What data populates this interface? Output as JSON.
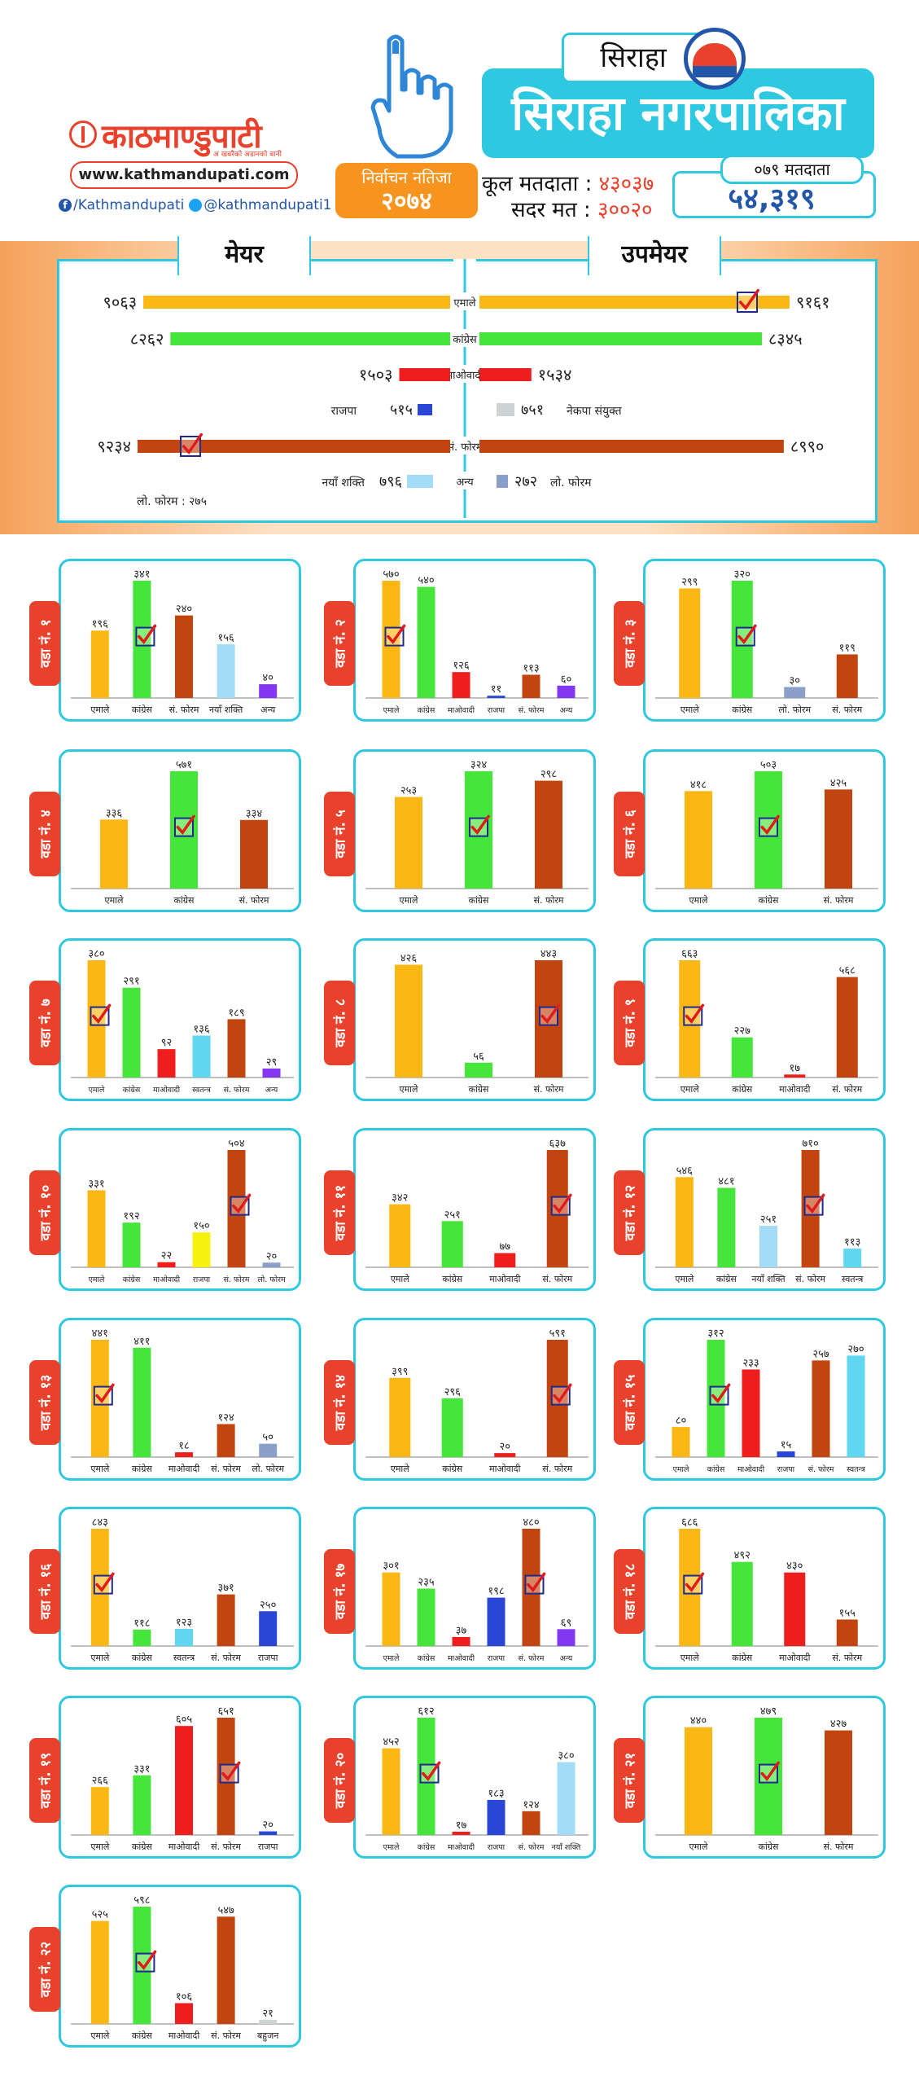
{
  "header": {
    "logo_text": "काठमाण्डुपाटी",
    "logo_tagline": "अ खबरैको अडानको बानी",
    "url": "www.kathmandupati.com",
    "facebook": "/Kathmandupati",
    "twitter": "@kathmandupati1",
    "election_label": "निर्वाचन नतिजा",
    "election_year": "२०७४",
    "district": "सिराहा",
    "municipality": "सिराहा नगरपालिका",
    "total_voters_label": "कूल मतदाता",
    "total_voters": "४३०३७",
    "valid_votes_label": "सदर मत",
    "valid_votes": "३००२०",
    "vote_2079_label": "०७९ मतदाता",
    "vote_2079": "५४,३१९"
  },
  "colors": {
    "yellow": "#fbb713",
    "green": "#45e53b",
    "red": "#ef1e1e",
    "blue": "#2946d6",
    "grey": "#cdd2d2",
    "brown": "#c2440f",
    "skyblue": "#a3dcf6",
    "purple": "#8237f0",
    "steel": "#8aa0c8",
    "teal": "#60d7f0",
    "yellow2": "#f7f10f",
    "frame": "#2ec8e0",
    "tab": "#e8412c"
  },
  "chart_data": [
    {
      "type": "bar",
      "title": "मेयर",
      "series_name": "mayor",
      "categories": [
        "एमाले",
        "कांग्रेस",
        "माओवादी",
        "राजपा",
        "सं. फोरम",
        "नयाँ शक्ति",
        "लो. फोरम"
      ],
      "value_labels": [
        "९०६३",
        "८२६२",
        "१५०३",
        "५१५",
        "९२३४",
        "७९६",
        "२७५"
      ],
      "values": [
        9063,
        8262,
        1503,
        515,
        9234,
        796,
        275
      ],
      "colors": [
        "yellow",
        "green",
        "red",
        "blue",
        "brown",
        "skyblue",
        ""
      ],
      "winner": "सं. फोरम"
    },
    {
      "type": "bar",
      "title": "उपमेयर",
      "series_name": "deputy",
      "categories": [
        "एमाले",
        "कांग्रेस",
        "माओवादी",
        "नेकपा संयुक्त",
        "सं. फोरम",
        "अन्य",
        "लो. फोरम"
      ],
      "value_labels": [
        "९१६१",
        "८३४५",
        "१५३४",
        "७५१",
        "८९९०",
        "",
        "२७२"
      ],
      "values": [
        9161,
        8345,
        1534,
        751,
        8990,
        null,
        272
      ],
      "colors": [
        "yellow",
        "green",
        "red",
        "grey",
        "brown",
        "skyblue",
        "steel"
      ],
      "winner": "एमाले"
    }
  ],
  "wards": [
    {
      "label": "वडा नं. १",
      "bars": [
        {
          "name": "एमाले",
          "value": 196,
          "label": "१९६",
          "color": "yellow"
        },
        {
          "name": "कांग्रेस",
          "value": 341,
          "label": "३४१",
          "color": "green",
          "winner": true
        },
        {
          "name": "सं. फोरम",
          "value": 240,
          "label": "२४०",
          "color": "brown"
        },
        {
          "name": "नयाँ शक्ति",
          "value": 156,
          "label": "१५६",
          "color": "skyblue"
        },
        {
          "name": "अन्य",
          "value": 40,
          "label": "४०",
          "color": "purple"
        }
      ]
    },
    {
      "label": "वडा नं. २",
      "bars": [
        {
          "name": "एमाले",
          "value": 570,
          "label": "५७०",
          "color": "yellow",
          "winner": true
        },
        {
          "name": "कांग्रेस",
          "value": 540,
          "label": "५४०",
          "color": "green"
        },
        {
          "name": "माओवादी",
          "value": 126,
          "label": "१२६",
          "color": "red"
        },
        {
          "name": "राजपा",
          "value": 11,
          "label": "११",
          "color": "blue"
        },
        {
          "name": "सं. फोरम",
          "value": 113,
          "label": "११३",
          "color": "brown"
        },
        {
          "name": "अन्य",
          "value": 60,
          "label": "६०",
          "color": "purple"
        }
      ]
    },
    {
      "label": "वडा नं. ३",
      "bars": [
        {
          "name": "एमाले",
          "value": 299,
          "label": "२९९",
          "color": "yellow"
        },
        {
          "name": "कांग्रेस",
          "value": 320,
          "label": "३२०",
          "color": "green",
          "winner": true
        },
        {
          "name": "लो. फोरम",
          "value": 30,
          "label": "३०",
          "color": "steel"
        },
        {
          "name": "सं. फोरम",
          "value": 119,
          "label": "११९",
          "color": "brown"
        }
      ]
    },
    {
      "label": "वडा नं. ४",
      "bars": [
        {
          "name": "एमाले",
          "value": 336,
          "label": "३३६",
          "color": "yellow"
        },
        {
          "name": "कांग्रेस",
          "value": 571,
          "label": "५७१",
          "color": "green",
          "winner": true
        },
        {
          "name": "सं. फोरम",
          "value": 334,
          "label": "३३४",
          "color": "brown"
        }
      ]
    },
    {
      "label": "वडा नं. ५",
      "bars": [
        {
          "name": "एमाले",
          "value": 253,
          "label": "२५३",
          "color": "yellow"
        },
        {
          "name": "कांग्रेस",
          "value": 324,
          "label": "३२४",
          "color": "green",
          "winner": true
        },
        {
          "name": "सं. फोरम",
          "value": 298,
          "label": "२९८",
          "color": "brown"
        }
      ]
    },
    {
      "label": "वडा नं. ६",
      "bars": [
        {
          "name": "एमाले",
          "value": 418,
          "label": "४१८",
          "color": "yellow"
        },
        {
          "name": "कांग्रेस",
          "value": 503,
          "label": "५०३",
          "color": "green",
          "winner": true
        },
        {
          "name": "सं. फोरम",
          "value": 425,
          "label": "४२५",
          "color": "brown"
        }
      ]
    },
    {
      "label": "वडा नं. ७",
      "bars": [
        {
          "name": "एमाले",
          "value": 380,
          "label": "३८०",
          "color": "yellow",
          "winner": true
        },
        {
          "name": "कांग्रेस",
          "value": 291,
          "label": "२९१",
          "color": "green"
        },
        {
          "name": "माओवादी",
          "value": 92,
          "label": "९२",
          "color": "red"
        },
        {
          "name": "स्वतन्त्र",
          "value": 136,
          "label": "१३६",
          "color": "teal"
        },
        {
          "name": "सं. फोरम",
          "value": 189,
          "label": "१८९",
          "color": "brown"
        },
        {
          "name": "अन्य",
          "value": 29,
          "label": "२९",
          "color": "purple"
        }
      ]
    },
    {
      "label": "वडा नं. ८",
      "bars": [
        {
          "name": "एमाले",
          "value": 426,
          "label": "४२६",
          "color": "yellow"
        },
        {
          "name": "कांग्रेस",
          "value": 56,
          "label": "५६",
          "color": "green"
        },
        {
          "name": "सं. फोरम",
          "value": 443,
          "label": "४४३",
          "color": "brown",
          "winner": true
        }
      ]
    },
    {
      "label": "वडा नं. ९",
      "bars": [
        {
          "name": "एमाले",
          "value": 663,
          "label": "६६३",
          "color": "yellow",
          "winner": true
        },
        {
          "name": "कांग्रेस",
          "value": 227,
          "label": "२२७",
          "color": "green"
        },
        {
          "name": "माओवादी",
          "value": 17,
          "label": "१७",
          "color": "red"
        },
        {
          "name": "सं. फोरम",
          "value": 568,
          "label": "५६८",
          "color": "brown"
        }
      ]
    },
    {
      "label": "वडा नं. १०",
      "bars": [
        {
          "name": "एमाले",
          "value": 331,
          "label": "३३१",
          "color": "yellow"
        },
        {
          "name": "कांग्रेस",
          "value": 192,
          "label": "१९२",
          "color": "green"
        },
        {
          "name": "माओवादी",
          "value": 22,
          "label": "२२",
          "color": "red"
        },
        {
          "name": "राजपा",
          "value": 150,
          "label": "१५०",
          "color": "yellow2"
        },
        {
          "name": "सं. फोरम",
          "value": 504,
          "label": "५०४",
          "color": "brown",
          "winner": true
        },
        {
          "name": "लो. फोरम",
          "value": 20,
          "label": "२०",
          "color": "steel"
        }
      ]
    },
    {
      "label": "वडा नं. ११",
      "bars": [
        {
          "name": "एमाले",
          "value": 342,
          "label": "३४२",
          "color": "yellow"
        },
        {
          "name": "कांग्रेस",
          "value": 251,
          "label": "२५१",
          "color": "green"
        },
        {
          "name": "माओवादी",
          "value": 77,
          "label": "७७",
          "color": "red"
        },
        {
          "name": "सं. फोरम",
          "value": 637,
          "label": "६३७",
          "color": "brown",
          "winner": true
        }
      ]
    },
    {
      "label": "वडा नं. १२",
      "bars": [
        {
          "name": "एमाले",
          "value": 546,
          "label": "५४६",
          "color": "yellow"
        },
        {
          "name": "कांग्रेस",
          "value": 481,
          "label": "४८१",
          "color": "green"
        },
        {
          "name": "नयाँ शक्ति",
          "value": 251,
          "label": "२५१",
          "color": "skyblue"
        },
        {
          "name": "सं. फोरम",
          "value": 710,
          "label": "७१०",
          "color": "brown",
          "winner": true
        },
        {
          "name": "स्वतन्त्र",
          "value": 113,
          "label": "११३",
          "color": "teal"
        }
      ]
    },
    {
      "label": "वडा नं. १३",
      "bars": [
        {
          "name": "एमाले",
          "value": 441,
          "label": "४४१",
          "color": "yellow",
          "winner": true
        },
        {
          "name": "कांग्रेस",
          "value": 411,
          "label": "४११",
          "color": "green"
        },
        {
          "name": "माओवादी",
          "value": 18,
          "label": "१८",
          "color": "red"
        },
        {
          "name": "सं. फोरम",
          "value": 124,
          "label": "१२४",
          "color": "brown"
        },
        {
          "name": "लो. फोरम",
          "value": 50,
          "label": "५०",
          "color": "steel"
        }
      ]
    },
    {
      "label": "वडा नं. १४",
      "bars": [
        {
          "name": "एमाले",
          "value": 399,
          "label": "३९९",
          "color": "yellow"
        },
        {
          "name": "कांग्रेस",
          "value": 296,
          "label": "२९६",
          "color": "green"
        },
        {
          "name": "माओवादी",
          "value": 20,
          "label": "२०",
          "color": "red"
        },
        {
          "name": "सं. फोरम",
          "value": 591,
          "label": "५९१",
          "color": "brown",
          "winner": true
        }
      ]
    },
    {
      "label": "वडा नं. १५",
      "bars": [
        {
          "name": "एमाले",
          "value": 80,
          "label": "८०",
          "color": "yellow"
        },
        {
          "name": "कांग्रेस",
          "value": 312,
          "label": "३१२",
          "color": "green",
          "winner": true
        },
        {
          "name": "माओवादी",
          "value": 233,
          "label": "२३३",
          "color": "red"
        },
        {
          "name": "राजपा",
          "value": 15,
          "label": "१५",
          "color": "blue"
        },
        {
          "name": "सं. फोरम",
          "value": 257,
          "label": "२५७",
          "color": "brown"
        },
        {
          "name": "स्वतन्त्र",
          "value": 270,
          "label": "२७०",
          "color": "teal"
        }
      ]
    },
    {
      "label": "वडा नं. १६",
      "bars": [
        {
          "name": "एमाले",
          "value": 843,
          "label": "८४३",
          "color": "yellow",
          "winner": true
        },
        {
          "name": "कांग्रेस",
          "value": 118,
          "label": "११८",
          "color": "green"
        },
        {
          "name": "स्वतन्त्र",
          "value": 123,
          "label": "१२३",
          "color": "teal"
        },
        {
          "name": "सं. फोरम",
          "value": 371,
          "label": "३७१",
          "color": "brown"
        },
        {
          "name": "राजपा",
          "value": 250,
          "label": "२५०",
          "color": "blue"
        }
      ]
    },
    {
      "label": "वडा नं. १७",
      "bars": [
        {
          "name": "एमाले",
          "value": 301,
          "label": "३०१",
          "color": "yellow"
        },
        {
          "name": "कांग्रेस",
          "value": 235,
          "label": "२३५",
          "color": "green"
        },
        {
          "name": "माओवादी",
          "value": 37,
          "label": "३७",
          "color": "red"
        },
        {
          "name": "राजपा",
          "value": 198,
          "label": "१९८",
          "color": "blue"
        },
        {
          "name": "सं. फोरम",
          "value": 480,
          "label": "४८०",
          "color": "brown",
          "winner": true
        },
        {
          "name": "अन्य",
          "value": 69,
          "label": "६९",
          "color": "purple"
        }
      ]
    },
    {
      "label": "वडा नं. १८",
      "bars": [
        {
          "name": "एमाले",
          "value": 686,
          "label": "६८६",
          "color": "yellow",
          "winner": true
        },
        {
          "name": "कांग्रेस",
          "value": 492,
          "label": "४९२",
          "color": "green"
        },
        {
          "name": "माओवादी",
          "value": 430,
          "label": "४३०",
          "color": "red"
        },
        {
          "name": "सं. फोरम",
          "value": 155,
          "label": "१५५",
          "color": "brown"
        }
      ]
    },
    {
      "label": "वडा नं. १९",
      "bars": [
        {
          "name": "एमाले",
          "value": 266,
          "label": "२६६",
          "color": "yellow"
        },
        {
          "name": "कांग्रेस",
          "value": 331,
          "label": "३३१",
          "color": "green"
        },
        {
          "name": "माओवादी",
          "value": 605,
          "label": "६०५",
          "color": "red"
        },
        {
          "name": "सं. फोरम",
          "value": 651,
          "label": "६५१",
          "color": "brown",
          "winner": true
        },
        {
          "name": "राजपा",
          "value": 20,
          "label": "२०",
          "color": "blue"
        }
      ]
    },
    {
      "label": "वडा नं. २०",
      "bars": [
        {
          "name": "एमाले",
          "value": 452,
          "label": "४५२",
          "color": "yellow"
        },
        {
          "name": "कांग्रेस",
          "value": 612,
          "label": "६१२",
          "color": "green",
          "winner": true
        },
        {
          "name": "माओवादी",
          "value": 17,
          "label": "१७",
          "color": "red"
        },
        {
          "name": "राजपा",
          "value": 183,
          "label": "१८३",
          "color": "blue"
        },
        {
          "name": "सं. फोरम",
          "value": 124,
          "label": "१२४",
          "color": "brown"
        },
        {
          "name": "नयाँ शक्ति",
          "value": 380,
          "label": "३८०",
          "color": "skyblue"
        }
      ]
    },
    {
      "label": "वडा नं. २१",
      "bars": [
        {
          "name": "एमाले",
          "value": 440,
          "label": "४४०",
          "color": "yellow"
        },
        {
          "name": "कांग्रेस",
          "value": 479,
          "label": "४७९",
          "color": "green",
          "winner": true
        },
        {
          "name": "सं. फोरम",
          "value": 427,
          "label": "४२७",
          "color": "brown"
        }
      ]
    },
    {
      "label": "वडा नं. २२",
      "bars": [
        {
          "name": "एमाले",
          "value": 525,
          "label": "५२५",
          "color": "yellow"
        },
        {
          "name": "कांग्रेस",
          "value": 598,
          "label": "५९८",
          "color": "green",
          "winner": true
        },
        {
          "name": "माओवादी",
          "value": 106,
          "label": "१०६",
          "color": "red"
        },
        {
          "name": "सं. फोरम",
          "value": 547,
          "label": "५४७",
          "color": "brown"
        },
        {
          "name": "बहुजन",
          "value": 21,
          "label": "२१",
          "color": "grey"
        }
      ]
    }
  ]
}
